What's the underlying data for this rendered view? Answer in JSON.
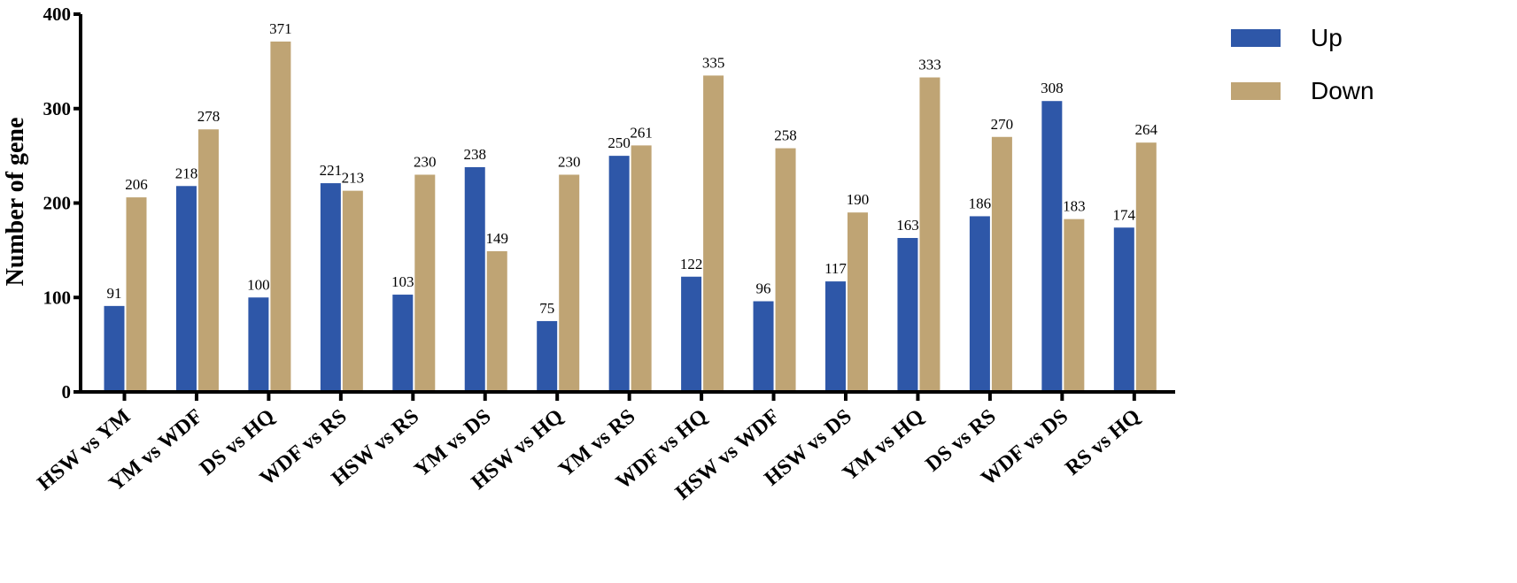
{
  "chart_data": {
    "type": "bar",
    "title": "",
    "xlabel": "",
    "ylabel": "Number of gene",
    "ylim": [
      0,
      400
    ],
    "yticks": [
      0,
      100,
      200,
      300,
      400
    ],
    "grid": false,
    "legend_position": "top-right",
    "categories": [
      "HSW vs YM",
      "YM vs WDF",
      "DS vs HQ",
      "WDF vs RS",
      "HSW vs RS",
      "YM vs DS",
      "HSW vs HQ",
      "YM vs RS",
      "WDF vs HQ",
      "HSW vs WDF",
      "HSW vs DS",
      "YM vs HQ",
      "DS vs RS",
      "WDF vs DS",
      "RS vs HQ"
    ],
    "series": [
      {
        "name": "Up",
        "color": "#2e57a8",
        "values": [
          91,
          218,
          100,
          221,
          103,
          238,
          75,
          250,
          122,
          96,
          117,
          163,
          186,
          308,
          174
        ]
      },
      {
        "name": "Down",
        "color": "#bfa474",
        "values": [
          206,
          278,
          371,
          213,
          230,
          149,
          230,
          261,
          335,
          258,
          190,
          333,
          270,
          183,
          264
        ]
      }
    ]
  }
}
